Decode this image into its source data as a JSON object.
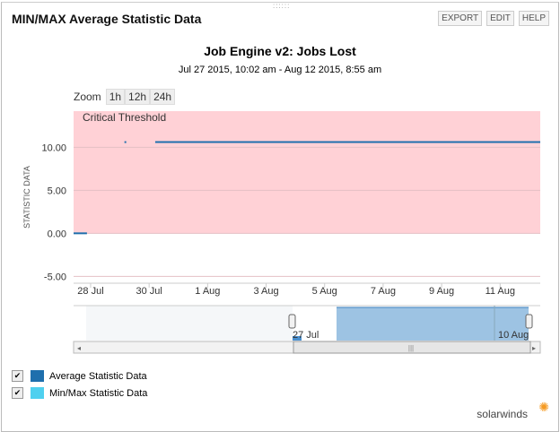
{
  "widget": {
    "title": "MIN/MAX Average Statistic Data",
    "buttons": [
      "EXPORT",
      "EDIT",
      "HELP"
    ]
  },
  "zoom": {
    "label": "Zoom",
    "options": [
      "1h",
      "12h",
      "24h"
    ]
  },
  "legend": [
    {
      "label": "Average Statistic Data",
      "checked": true,
      "color": "#1f6fad"
    },
    {
      "label": "Min/Max Statistic Data",
      "checked": true,
      "color": "#4fd0ef"
    }
  ],
  "brand": "solarwinds",
  "chart_data": {
    "type": "line",
    "title": "Job Engine v2: Jobs Lost",
    "subtitle": "Jul 27 2015, 10:02 am - Aug 12 2015, 8:55 am",
    "ylabel": "STATISTIC DATA",
    "xlim": [
      "2015-07-27 10:02",
      "2015-08-12 08:55"
    ],
    "ylim": [
      -5.8,
      14.2
    ],
    "yticks": [
      "10.00",
      "5.00",
      "0.00",
      "-5.00"
    ],
    "ytick_values": [
      10,
      5,
      0,
      -5
    ],
    "xticks": [
      "28 Jul",
      "30 Jul",
      "1 Aug",
      "3 Aug",
      "5 Aug",
      "7 Aug",
      "9 Aug",
      "11 Aug"
    ],
    "xtick_dates": [
      "2015-07-28",
      "2015-07-30",
      "2015-08-01",
      "2015-08-03",
      "2015-08-05",
      "2015-08-07",
      "2015-08-09",
      "2015-08-11"
    ],
    "threshold": {
      "label": "Critical Threshold",
      "from": 0,
      "color": "#ffd1d6"
    },
    "series": [
      {
        "name": "Average Statistic Data",
        "color": "#1f6fad",
        "segments": [
          [
            [
              "2015-07-27 10:02",
              0
            ],
            [
              "2015-07-27 21:00",
              0
            ]
          ],
          [
            [
              "2015-07-29 04:30",
              10.6
            ]
          ],
          [
            [
              "2015-07-30 05:00",
              10.6
            ],
            [
              "2015-08-12 08:55",
              10.6
            ]
          ]
        ]
      }
    ],
    "navigator": {
      "labels": [
        "27 Jul",
        "10 Aug"
      ],
      "grid": true
    }
  }
}
